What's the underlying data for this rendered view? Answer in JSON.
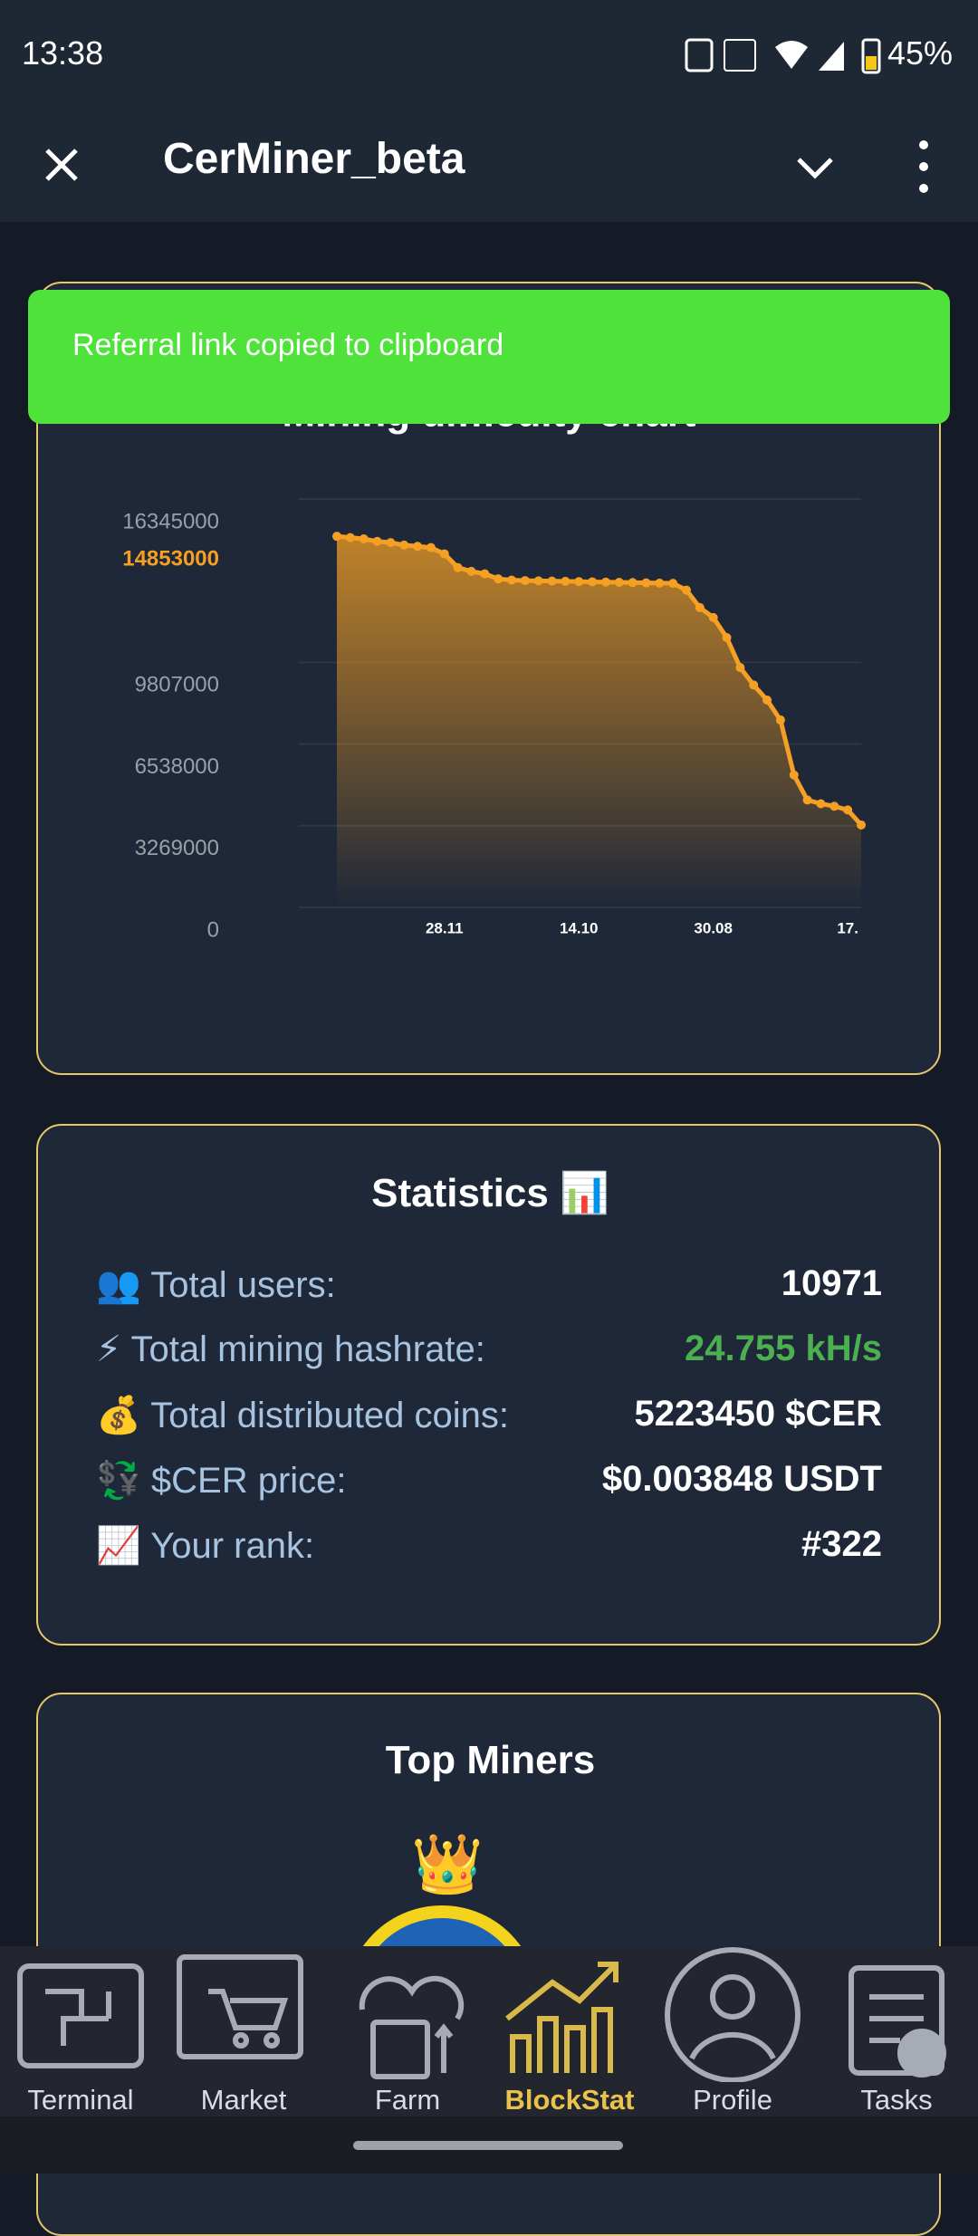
{
  "status_bar": {
    "time": "13:38",
    "battery": "45%"
  },
  "app_bar": {
    "title": "CerMiner_beta"
  },
  "toast": {
    "message": "Referral link copied to clipboard"
  },
  "chart_data": {
    "type": "area",
    "title": "Mining difficulty chart",
    "categories": [
      null,
      null,
      null,
      null,
      null,
      null,
      null,
      null,
      "28.11",
      null,
      null,
      null,
      null,
      null,
      null,
      null,
      null,
      null,
      "14.10",
      null,
      null,
      null,
      null,
      null,
      null,
      null,
      null,
      null,
      "30.08",
      null,
      null,
      null,
      null,
      null,
      null,
      null,
      null,
      null,
      "17.",
      null
    ],
    "values": [
      14853000,
      14800000,
      14750000,
      14650000,
      14600000,
      14500000,
      14450000,
      14400000,
      14150000,
      13600000,
      13450000,
      13350000,
      13150000,
      13100000,
      13080000,
      13070000,
      13060000,
      13050000,
      13040000,
      13030000,
      13020000,
      13010000,
      13000000,
      12990000,
      12980000,
      12970000,
      12700000,
      12000000,
      11600000,
      10800000,
      9600000,
      8900000,
      8300000,
      7500000,
      5300000,
      4300000,
      4150000,
      4050000,
      3900000,
      3300000
    ],
    "color": "#f5a023",
    "ylim": [
      0,
      16345000
    ],
    "yticks": [
      0,
      3269000,
      6538000,
      9807000,
      16345000
    ],
    "current_value": 14853000,
    "grid": true
  },
  "statistics": {
    "title": "Statistics 📊",
    "rows": [
      {
        "label": "👥 Total users:",
        "value": "10971"
      },
      {
        "label": "⚡ Total mining hashrate:",
        "value": "24.755 kH/s"
      },
      {
        "label": "💰 Total distributed coins:",
        "value": "5223450 $CER"
      },
      {
        "label": "💱 $CER price:",
        "value": "$0.003848 USDT"
      },
      {
        "label": "📈 Your rank:",
        "value": "#322"
      }
    ]
  },
  "top_miners": {
    "title": "Top Miners"
  },
  "nav": {
    "items": [
      "Terminal",
      "Market",
      "Farm",
      "BlockStat",
      "Profile",
      "Tasks"
    ],
    "active": 3
  }
}
